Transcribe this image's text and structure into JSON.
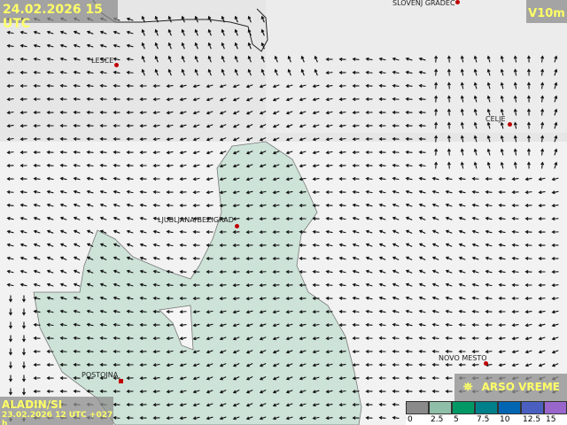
{
  "header": {
    "valid_time": "24.02.2026 15 UTC",
    "parameter": "V10m"
  },
  "footer": {
    "model": "ALADIN/SI",
    "run_info": "23.02.2026 12 UTC +027 h",
    "brand": "ARSO VREME"
  },
  "cities": [
    {
      "name": "SLOVENJ GRADEC"
    },
    {
      "name": "LESCE"
    },
    {
      "name": "CELJE"
    },
    {
      "name": "LJUBLJANA/BEZIGRAD"
    },
    {
      "name": "NOVO MESTO"
    },
    {
      "name": "POSTOJNA"
    }
  ],
  "legend": {
    "ticks": [
      "0",
      "2.5",
      "5",
      "7.5",
      "10",
      "12.5",
      "15"
    ],
    "colors": [
      "#8a8a8a",
      "#8fbfa8",
      "#009966",
      "#00808a",
      "#0066b3",
      "#4a5fc0",
      "#9966cc"
    ]
  },
  "wind_direction_prevailing": "from east (arrows pointing west)"
}
